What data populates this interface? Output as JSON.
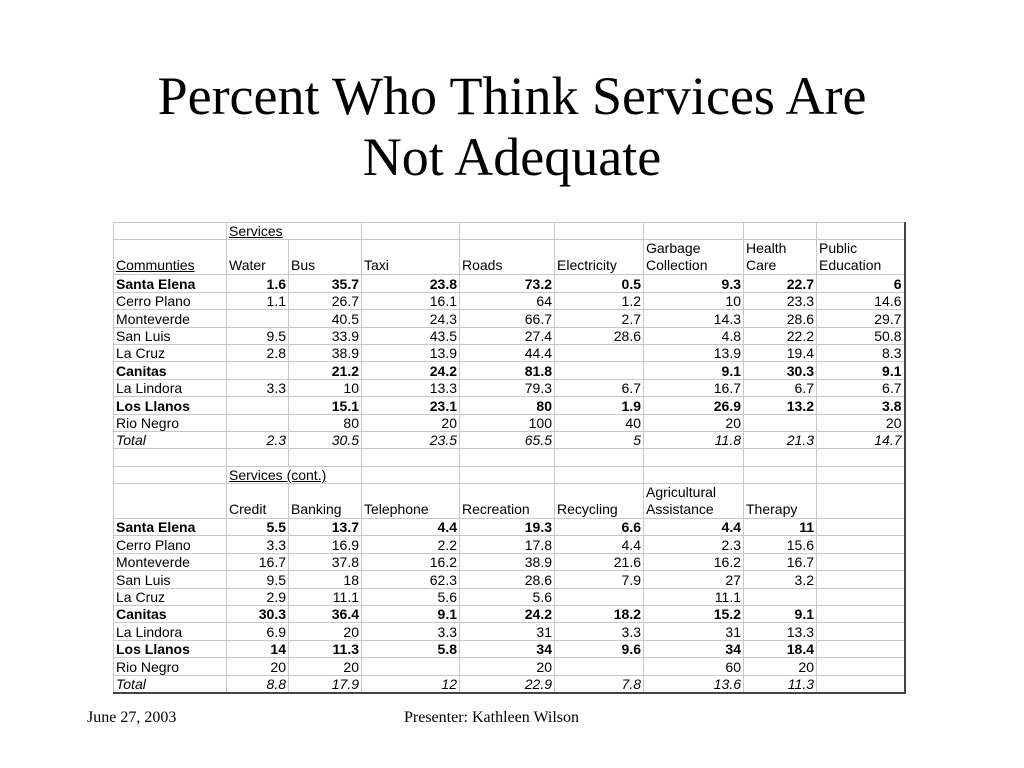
{
  "title": {
    "line1": "Percent Who Think Services Are",
    "line2": "Not Adequate"
  },
  "section1": {
    "group_label": "Services",
    "row_header": "Communties",
    "columns": [
      [
        "Water"
      ],
      [
        "Bus"
      ],
      [
        "Taxi"
      ],
      [
        "Roads"
      ],
      [
        "Electricity"
      ],
      [
        "Garbage",
        "Collection"
      ],
      [
        "Health",
        "Care"
      ],
      [
        "Public",
        "Education"
      ]
    ],
    "rows": [
      {
        "name": "Santa Elena",
        "style": "bold",
        "values": [
          "1.6",
          "35.7",
          "23.8",
          "73.2",
          "0.5",
          "9.3",
          "22.7",
          "6"
        ]
      },
      {
        "name": "Cerro Plano",
        "style": "",
        "values": [
          "1.1",
          "26.7",
          "16.1",
          "64",
          "1.2",
          "10",
          "23.3",
          "14.6"
        ]
      },
      {
        "name": "Monteverde",
        "style": "",
        "values": [
          "",
          "40.5",
          "24.3",
          "66.7",
          "2.7",
          "14.3",
          "28.6",
          "29.7"
        ]
      },
      {
        "name": "San Luis",
        "style": "",
        "values": [
          "9.5",
          "33.9",
          "43.5",
          "27.4",
          "28.6",
          "4.8",
          "22.2",
          "50.8"
        ]
      },
      {
        "name": "La Cruz",
        "style": "",
        "values": [
          "2.8",
          "38.9",
          "13.9",
          "44.4",
          "",
          "13.9",
          "19.4",
          "8.3"
        ]
      },
      {
        "name": "Canitas",
        "style": "bold",
        "values": [
          "",
          "21.2",
          "24.2",
          "81.8",
          "",
          "9.1",
          "30.3",
          "9.1"
        ]
      },
      {
        "name": "La Lindora",
        "style": "",
        "values": [
          "3.3",
          "10",
          "13.3",
          "79.3",
          "6.7",
          "16.7",
          "6.7",
          "6.7"
        ]
      },
      {
        "name": "Los Llanos",
        "style": "bold",
        "values": [
          "",
          "15.1",
          "23.1",
          "80",
          "1.9",
          "26.9",
          "13.2",
          "3.8"
        ]
      },
      {
        "name": "Rio Negro",
        "style": "",
        "values": [
          "",
          "80",
          "20",
          "100",
          "40",
          "20",
          "",
          "20"
        ]
      },
      {
        "name": "Total",
        "style": "italic",
        "values": [
          "2.3",
          "30.5",
          "23.5",
          "65.5",
          "5",
          "11.8",
          "21.3",
          "14.7"
        ]
      }
    ]
  },
  "section2": {
    "group_label": "Services (cont.)",
    "row_header": "",
    "columns": [
      [
        "Credit"
      ],
      [
        "Banking"
      ],
      [
        "Telephone"
      ],
      [
        "Recreation"
      ],
      [
        "Recycling"
      ],
      [
        "Agricultural",
        "Assistance"
      ],
      [
        "Therapy"
      ],
      [
        ""
      ]
    ],
    "rows": [
      {
        "name": "Santa Elena",
        "style": "bold",
        "values": [
          "5.5",
          "13.7",
          "4.4",
          "19.3",
          "6.6",
          "4.4",
          "11",
          ""
        ]
      },
      {
        "name": "Cerro Plano",
        "style": "",
        "values": [
          "3.3",
          "16.9",
          "2.2",
          "17.8",
          "4.4",
          "2.3",
          "15.6",
          ""
        ]
      },
      {
        "name": "Monteverde",
        "style": "",
        "values": [
          "16.7",
          "37.8",
          "16.2",
          "38.9",
          "21.6",
          "16.2",
          "16.7",
          ""
        ]
      },
      {
        "name": "San Luis",
        "style": "",
        "values": [
          "9.5",
          "18",
          "62.3",
          "28.6",
          "7.9",
          "27",
          "3.2",
          ""
        ]
      },
      {
        "name": "La Cruz",
        "style": "",
        "values": [
          "2.9",
          "11.1",
          "5.6",
          "5.6",
          "",
          "11.1",
          "",
          ""
        ]
      },
      {
        "name": "Canitas",
        "style": "bold",
        "values": [
          "30.3",
          "36.4",
          "9.1",
          "24.2",
          "18.2",
          "15.2",
          "9.1",
          ""
        ]
      },
      {
        "name": "La Lindora",
        "style": "",
        "values": [
          "6.9",
          "20",
          "3.3",
          "31",
          "3.3",
          "31",
          "13.3",
          ""
        ]
      },
      {
        "name": "Los Llanos",
        "style": "bold",
        "values": [
          "14",
          "11.3",
          "5.8",
          "34",
          "9.6",
          "34",
          "18.4",
          ""
        ]
      },
      {
        "name": "Rio Negro",
        "style": "",
        "values": [
          "20",
          "20",
          "",
          "20",
          "",
          "60",
          "20",
          ""
        ]
      },
      {
        "name": "Total",
        "style": "italic",
        "values": [
          "8.8",
          "17.9",
          "12",
          "22.9",
          "7.8",
          "13.6",
          "11.3",
          ""
        ]
      }
    ]
  },
  "footer": {
    "date": "June 27, 2003",
    "presenter": "Presenter: Kathleen Wilson"
  }
}
